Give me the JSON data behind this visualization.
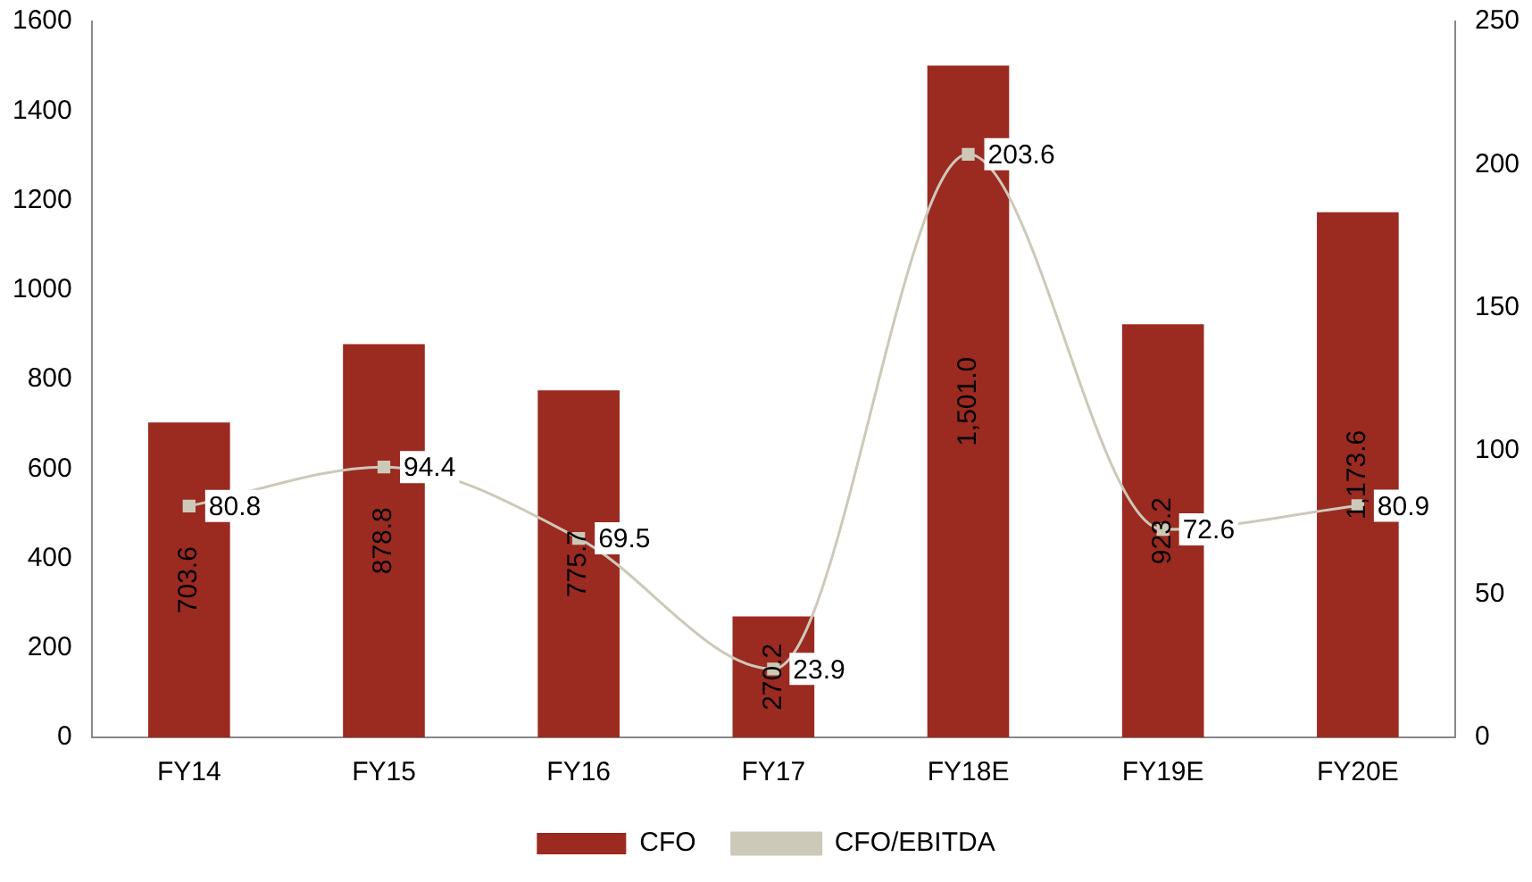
{
  "chart_data": {
    "type": "bar",
    "categories": [
      "FY14",
      "FY15",
      "FY16",
      "FY17",
      "FY18E",
      "FY19E",
      "FY20E"
    ],
    "series": [
      {
        "name": "CFO",
        "color": "#9b2a20",
        "values": [
          703.6,
          878.8,
          775.7,
          270.2,
          1501.0,
          923.2,
          1173.6
        ],
        "value_labels": [
          "703.6",
          "878.8",
          "775.7",
          "270.2",
          "1,501.0",
          "923.2",
          "1,173.6"
        ]
      },
      {
        "name": "CFO/EBITDA",
        "type": "line",
        "axis": "y2",
        "color": "#cdc9b9",
        "marker": "square",
        "values": [
          80.8,
          94.4,
          69.5,
          23.9,
          203.6,
          72.6,
          80.9
        ],
        "value_labels": [
          "80.8",
          "94.4",
          "69.5",
          "23.9",
          "203.6",
          "72.6",
          "80.9"
        ]
      }
    ],
    "ylim": [
      0,
      1600
    ],
    "yticks": [
      0,
      200,
      400,
      600,
      800,
      1000,
      1200,
      1400,
      1600
    ],
    "y2lim": [
      0,
      250
    ],
    "y2ticks": [
      0,
      50,
      100,
      150,
      200,
      250
    ],
    "grid": false,
    "legend": "bottom"
  }
}
